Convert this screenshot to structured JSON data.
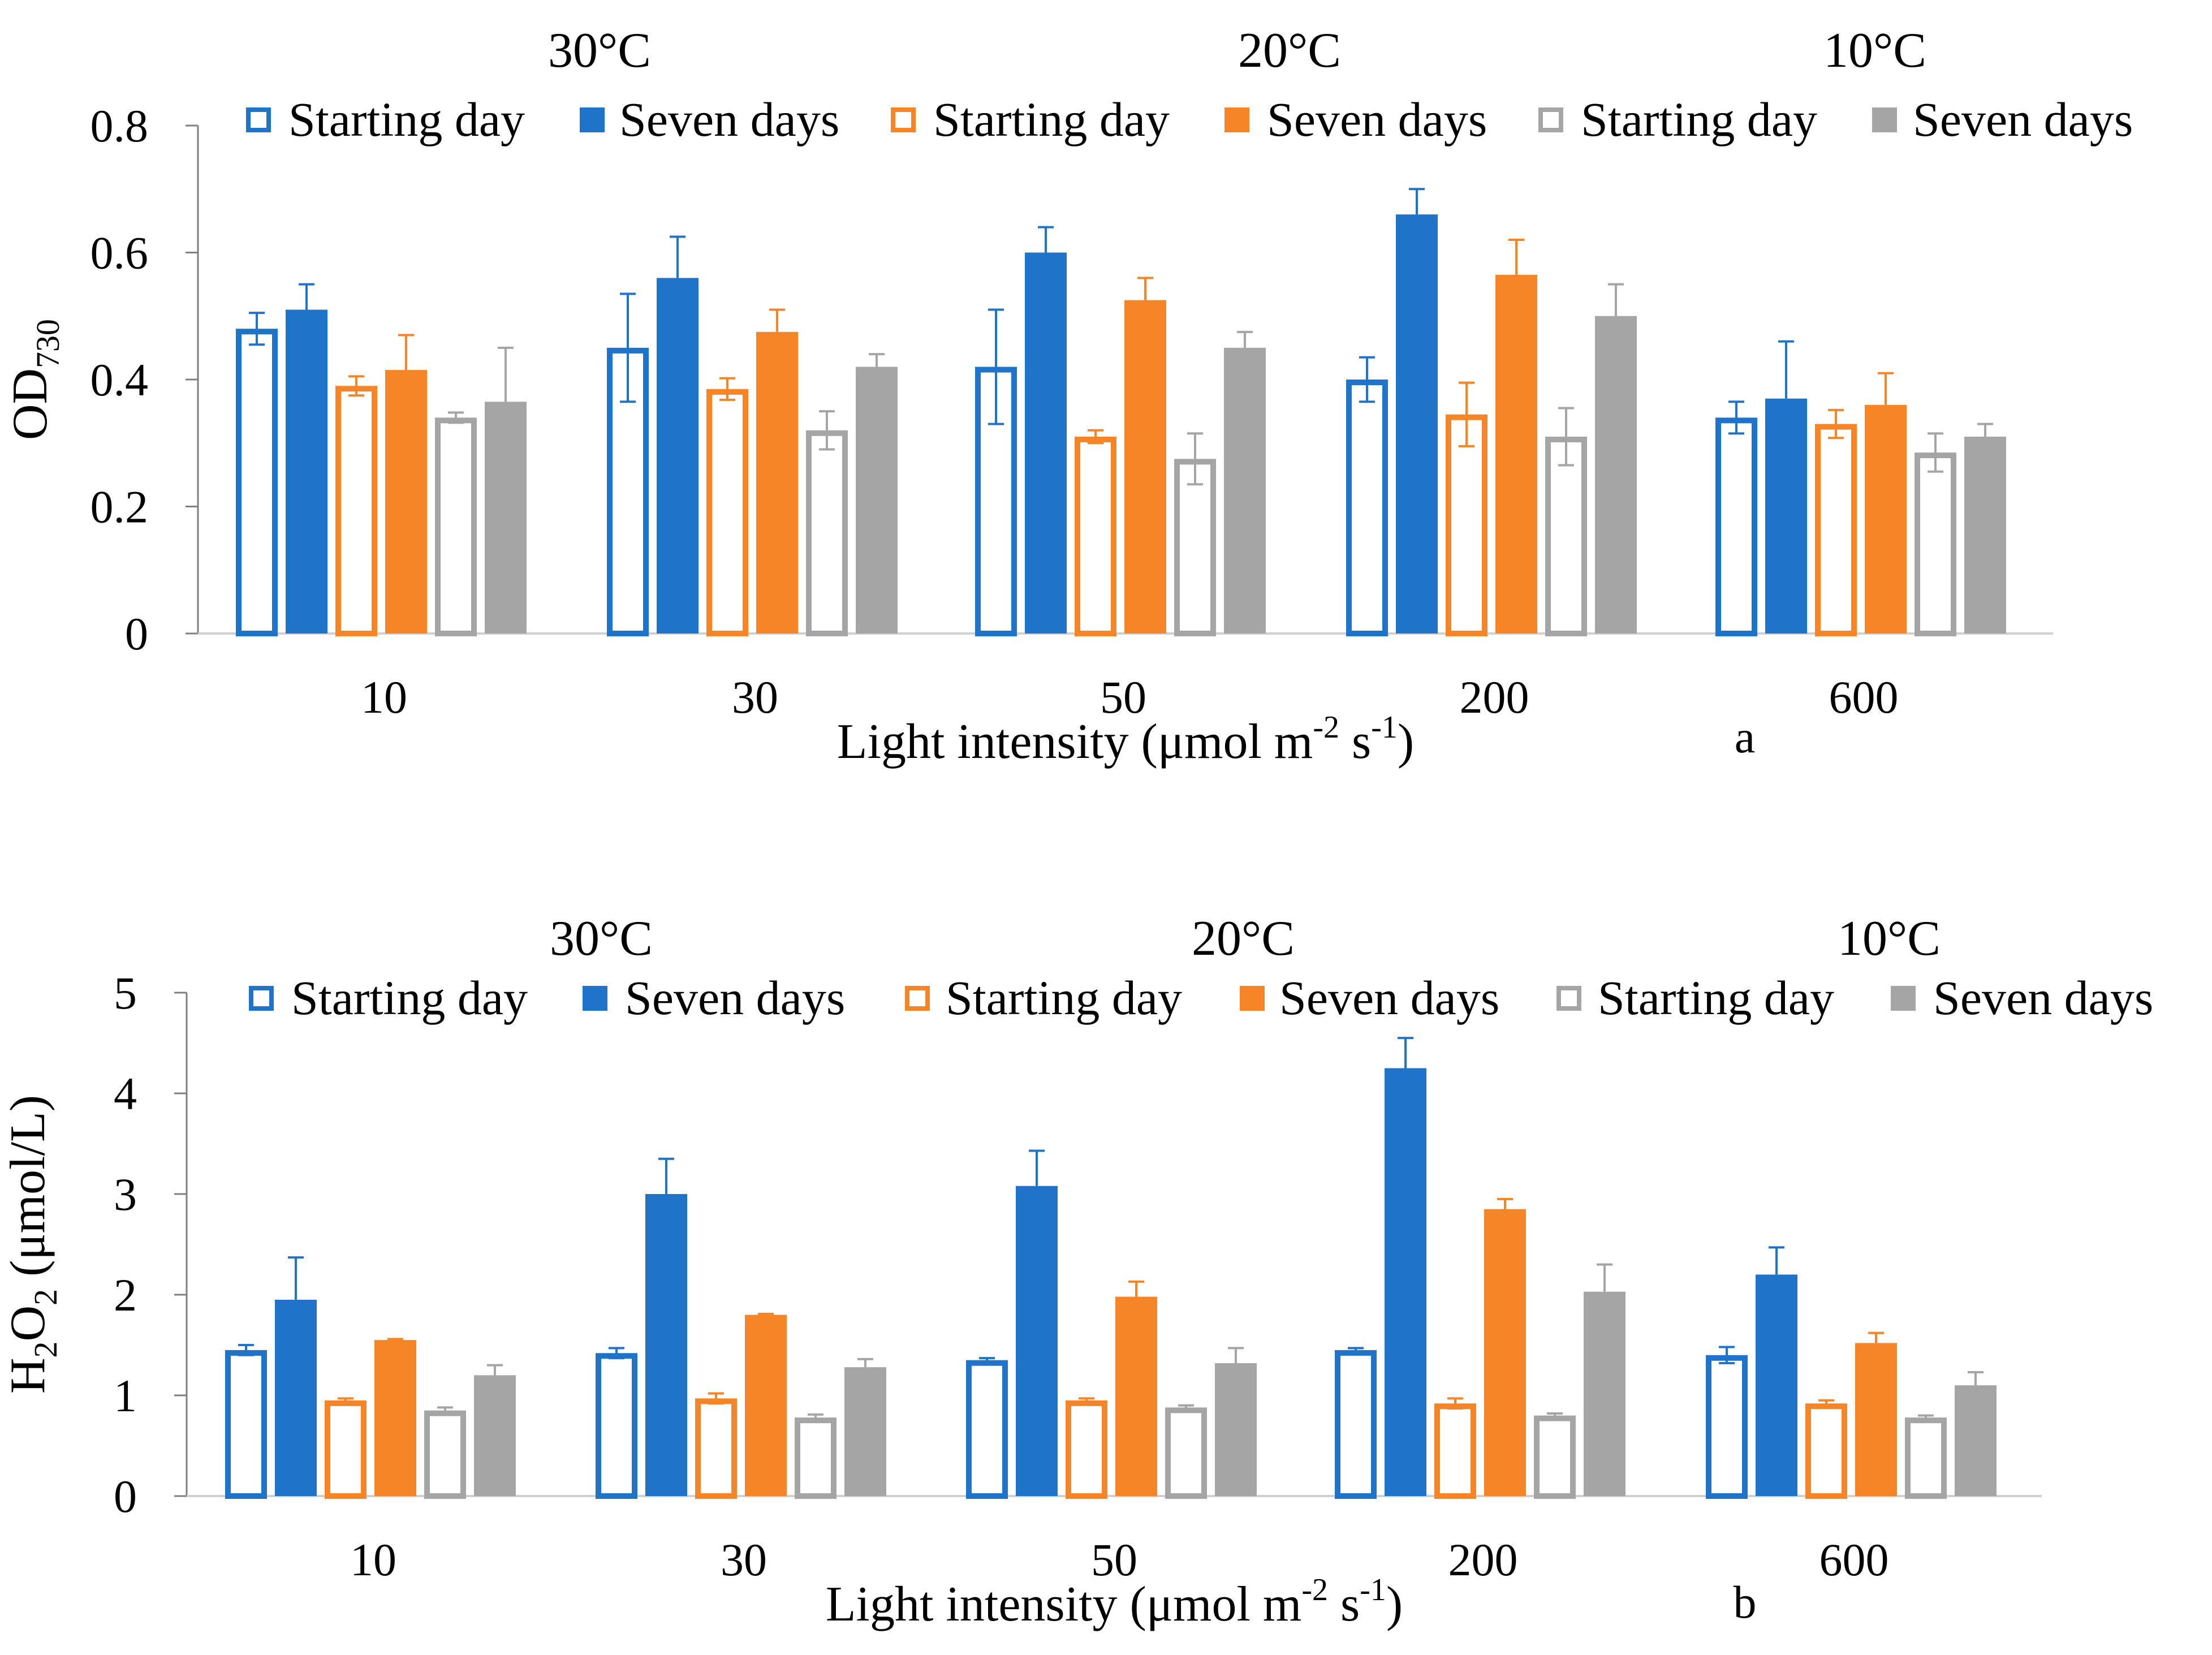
{
  "chart_data": [
    {
      "panel_label": "a",
      "type": "bar",
      "ylabel": {
        "base": "OD",
        "sub": "730"
      },
      "xlabel": "Light intensity (μmol m-2 s-1)",
      "xlabel_parts": {
        "pre": "Light intensity (μmol m",
        "sup1": "-2",
        "mid": " s",
        "sup2": "-1",
        "post": ")"
      },
      "ylim": [
        0,
        0.8
      ],
      "yticks": [
        0,
        0.2,
        0.4,
        0.6,
        0.8
      ],
      "ytick_labels": [
        "0",
        "0.2",
        "0.4",
        "0.6",
        "0.8"
      ],
      "categories": [
        "10",
        "30",
        "50",
        "200",
        "600"
      ],
      "temperature_labels": [
        "30°C",
        "20°C",
        "10°C"
      ],
      "series": [
        {
          "name": "Starting day",
          "temp": "30°C",
          "color": "#1F73C8",
          "style": "hollow",
          "values": [
            0.48,
            0.45,
            0.42,
            0.4,
            0.34
          ],
          "errors": [
            0.025,
            0.085,
            0.09,
            0.035,
            0.025
          ]
        },
        {
          "name": "Seven days",
          "temp": "30°C",
          "color": "#1F73C8",
          "style": "solid",
          "values": [
            0.51,
            0.56,
            0.6,
            0.66,
            0.37
          ],
          "errors": [
            0.04,
            0.065,
            0.04,
            0.04,
            0.09
          ]
        },
        {
          "name": "Starting day",
          "temp": "20°C",
          "color": "#F58526",
          "style": "hollow",
          "values": [
            0.39,
            0.385,
            0.31,
            0.345,
            0.33
          ],
          "errors": [
            0.015,
            0.017,
            0.01,
            0.05,
            0.022
          ]
        },
        {
          "name": "Seven days",
          "temp": "20°C",
          "color": "#F58526",
          "style": "solid",
          "values": [
            0.415,
            0.475,
            0.525,
            0.565,
            0.36
          ],
          "errors": [
            0.055,
            0.035,
            0.035,
            0.055,
            0.05
          ]
        },
        {
          "name": "Starting day",
          "temp": "10°C",
          "color": "#A5A5A5",
          "style": "hollow",
          "values": [
            0.34,
            0.32,
            0.275,
            0.31,
            0.285
          ],
          "errors": [
            0.008,
            0.03,
            0.04,
            0.045,
            0.03
          ]
        },
        {
          "name": "Seven days",
          "temp": "10°C",
          "color": "#A5A5A5",
          "style": "solid",
          "values": [
            0.365,
            0.42,
            0.45,
            0.5,
            0.31
          ],
          "errors": [
            0.085,
            0.02,
            0.025,
            0.05,
            0.02
          ]
        }
      ]
    },
    {
      "panel_label": "b",
      "type": "bar",
      "ylabel": {
        "base1": "H",
        "sub1": "2",
        "base2": "O",
        "sub2": "2",
        "rest": " (μmol/L)"
      },
      "xlabel": "Light intensity (μmol m-2 s-1)",
      "xlabel_parts": {
        "pre": "Light intensity (μmol m",
        "sup1": "-2",
        "mid": " s",
        "sup2": "-1",
        "post": ")"
      },
      "ylim": [
        0,
        5
      ],
      "yticks": [
        0,
        1,
        2,
        3,
        4,
        5
      ],
      "ytick_labels": [
        "0",
        "1",
        "2",
        "3",
        "4",
        "5"
      ],
      "categories": [
        "10",
        "30",
        "50",
        "200",
        "600"
      ],
      "temperature_labels": [
        "30°C",
        "20°C",
        "10°C"
      ],
      "series": [
        {
          "name": "Starting day",
          "temp": "30°C",
          "color": "#1F73C8",
          "style": "hollow",
          "values": [
            1.45,
            1.42,
            1.35,
            1.45,
            1.4
          ],
          "errors": [
            0.05,
            0.05,
            0.02,
            0.02,
            0.08
          ]
        },
        {
          "name": "Seven days",
          "temp": "30°C",
          "color": "#1F73C8",
          "style": "solid",
          "values": [
            1.95,
            3.0,
            3.08,
            4.25,
            2.2
          ],
          "errors": [
            0.42,
            0.35,
            0.35,
            0.3,
            0.27
          ]
        },
        {
          "name": "Starting day",
          "temp": "20°C",
          "color": "#F58526",
          "style": "hollow",
          "values": [
            0.95,
            0.97,
            0.95,
            0.92,
            0.92
          ],
          "errors": [
            0.02,
            0.05,
            0.02,
            0.05,
            0.03
          ]
        },
        {
          "name": "Seven days",
          "temp": "20°C",
          "color": "#F58526",
          "style": "solid",
          "values": [
            1.55,
            1.8,
            1.98,
            2.85,
            1.52
          ],
          "errors": [
            0.01,
            0.01,
            0.15,
            0.1,
            0.1
          ]
        },
        {
          "name": "Starting day",
          "temp": "10°C",
          "color": "#A5A5A5",
          "style": "hollow",
          "values": [
            0.85,
            0.78,
            0.88,
            0.8,
            0.78
          ],
          "errors": [
            0.03,
            0.03,
            0.02,
            0.02,
            0.02
          ]
        },
        {
          "name": "Seven days",
          "temp": "10°C",
          "color": "#A5A5A5",
          "style": "solid",
          "values": [
            1.2,
            1.28,
            1.32,
            2.03,
            1.1
          ],
          "errors": [
            0.1,
            0.08,
            0.15,
            0.27,
            0.13
          ]
        }
      ]
    }
  ]
}
